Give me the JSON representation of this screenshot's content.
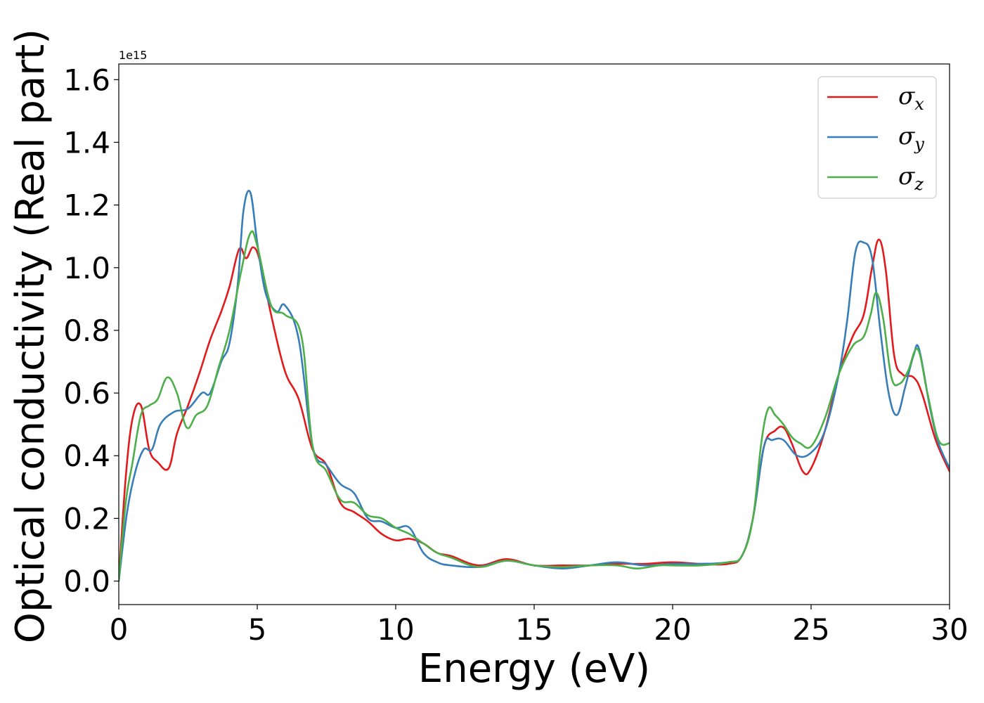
{
  "chart_data": {
    "type": "line",
    "xlabel": "Energy (eV)",
    "ylabel": "Optical conductivity (Real part)",
    "y_offset_text": "1e15",
    "xlim": [
      0,
      30
    ],
    "ylim": [
      -0.075,
      1.65
    ],
    "x_ticks": [
      0,
      5,
      10,
      15,
      20,
      25,
      30
    ],
    "x_tick_labels": [
      "0",
      "5",
      "10",
      "15",
      "20",
      "25",
      "30"
    ],
    "y_ticks": [
      0.0,
      0.2,
      0.4,
      0.6,
      0.8,
      1.0,
      1.2,
      1.4,
      1.6
    ],
    "y_tick_labels": [
      "0.0",
      "0.2",
      "0.4",
      "0.6",
      "0.8",
      "1.0",
      "1.2",
      "1.4",
      "1.6"
    ],
    "legend_position": "upper right",
    "grid": false,
    "series": [
      {
        "name": "σ",
        "subscript": "x",
        "color": "#e31a1c",
        "x": [
          0,
          0.25,
          0.5,
          0.8,
          1.1,
          1.4,
          1.8,
          2.1,
          2.5,
          2.9,
          3.3,
          3.7,
          4.0,
          4.35,
          4.6,
          4.85,
          5.1,
          5.5,
          6.0,
          6.5,
          7.0,
          7.5,
          8.0,
          8.5,
          9.0,
          9.5,
          10.0,
          10.5,
          11.0,
          11.5,
          12.0,
          13.0,
          14.0,
          15.0,
          16.0,
          17.0,
          18.0,
          19.0,
          20.0,
          21.0,
          22.0,
          22.5,
          22.9,
          23.3,
          23.7,
          24.0,
          24.3,
          24.7,
          25.0,
          25.5,
          26.0,
          26.5,
          26.9,
          27.2,
          27.45,
          27.7,
          28.0,
          28.3,
          28.7,
          29.0,
          29.5,
          30.0
        ],
        "y": [
          0.0,
          0.33,
          0.52,
          0.56,
          0.42,
          0.38,
          0.36,
          0.47,
          0.56,
          0.66,
          0.77,
          0.86,
          0.94,
          1.06,
          1.03,
          1.065,
          1.02,
          0.85,
          0.67,
          0.58,
          0.42,
          0.37,
          0.25,
          0.22,
          0.19,
          0.15,
          0.13,
          0.135,
          0.12,
          0.09,
          0.08,
          0.05,
          0.07,
          0.05,
          0.05,
          0.05,
          0.055,
          0.055,
          0.06,
          0.055,
          0.055,
          0.08,
          0.2,
          0.43,
          0.48,
          0.49,
          0.44,
          0.35,
          0.36,
          0.48,
          0.66,
          0.78,
          0.85,
          1.0,
          1.09,
          0.99,
          0.72,
          0.66,
          0.65,
          0.6,
          0.45,
          0.35
        ]
      },
      {
        "name": "σ",
        "subscript": "y",
        "color": "#377eb8",
        "x": [
          0,
          0.3,
          0.6,
          0.9,
          1.2,
          1.5,
          2.0,
          2.5,
          3.0,
          3.3,
          3.7,
          4.0,
          4.3,
          4.5,
          4.75,
          5.0,
          5.3,
          5.7,
          6.0,
          6.5,
          7.0,
          7.5,
          8.0,
          8.5,
          9.0,
          9.5,
          10.0,
          10.5,
          11.0,
          11.5,
          12.0,
          13.0,
          14.0,
          15.0,
          16.0,
          17.0,
          18.0,
          19.0,
          20.0,
          21.0,
          22.0,
          22.5,
          22.9,
          23.3,
          23.6,
          24.0,
          24.5,
          25.0,
          25.5,
          26.0,
          26.3,
          26.6,
          26.9,
          27.2,
          27.5,
          27.8,
          28.1,
          28.4,
          28.7,
          28.9,
          29.3,
          29.6,
          30.0
        ],
        "y": [
          0.0,
          0.22,
          0.35,
          0.42,
          0.42,
          0.5,
          0.54,
          0.55,
          0.6,
          0.6,
          0.7,
          0.76,
          0.95,
          1.18,
          1.24,
          1.08,
          0.92,
          0.86,
          0.88,
          0.77,
          0.43,
          0.37,
          0.31,
          0.28,
          0.2,
          0.19,
          0.17,
          0.17,
          0.09,
          0.06,
          0.05,
          0.045,
          0.065,
          0.05,
          0.04,
          0.05,
          0.06,
          0.05,
          0.055,
          0.055,
          0.06,
          0.08,
          0.2,
          0.43,
          0.45,
          0.45,
          0.4,
          0.41,
          0.48,
          0.66,
          0.83,
          1.05,
          1.08,
          1.03,
          0.8,
          0.6,
          0.53,
          0.62,
          0.72,
          0.74,
          0.55,
          0.44,
          0.36
        ]
      },
      {
        "name": "σ",
        "subscript": "z",
        "color": "#4daf4a",
        "x": [
          0,
          0.25,
          0.5,
          0.8,
          1.1,
          1.4,
          1.75,
          2.1,
          2.45,
          2.8,
          3.2,
          3.6,
          4.0,
          4.4,
          4.75,
          5.0,
          5.5,
          6.0,
          6.6,
          7.0,
          7.5,
          8.0,
          8.5,
          9.0,
          9.5,
          10.0,
          10.5,
          11.0,
          11.5,
          12.0,
          13.0,
          14.0,
          15.0,
          16.0,
          17.0,
          18.0,
          18.7,
          19.5,
          20.0,
          21.0,
          22.0,
          22.5,
          22.9,
          23.2,
          23.45,
          23.7,
          24.0,
          24.3,
          24.6,
          25.0,
          25.5,
          26.0,
          26.5,
          26.9,
          27.15,
          27.35,
          27.6,
          27.9,
          28.2,
          28.5,
          28.85,
          29.2,
          29.6,
          30.0
        ],
        "y": [
          0.0,
          0.25,
          0.38,
          0.53,
          0.56,
          0.58,
          0.65,
          0.6,
          0.49,
          0.53,
          0.56,
          0.68,
          0.8,
          0.98,
          1.11,
          1.07,
          0.88,
          0.85,
          0.78,
          0.43,
          0.35,
          0.26,
          0.25,
          0.21,
          0.2,
          0.17,
          0.15,
          0.12,
          0.09,
          0.075,
          0.045,
          0.065,
          0.05,
          0.045,
          0.05,
          0.05,
          0.04,
          0.05,
          0.05,
          0.05,
          0.06,
          0.08,
          0.2,
          0.44,
          0.55,
          0.53,
          0.5,
          0.46,
          0.44,
          0.43,
          0.52,
          0.66,
          0.75,
          0.78,
          0.85,
          0.92,
          0.84,
          0.65,
          0.63,
          0.67,
          0.74,
          0.6,
          0.45,
          0.44
        ]
      }
    ]
  }
}
